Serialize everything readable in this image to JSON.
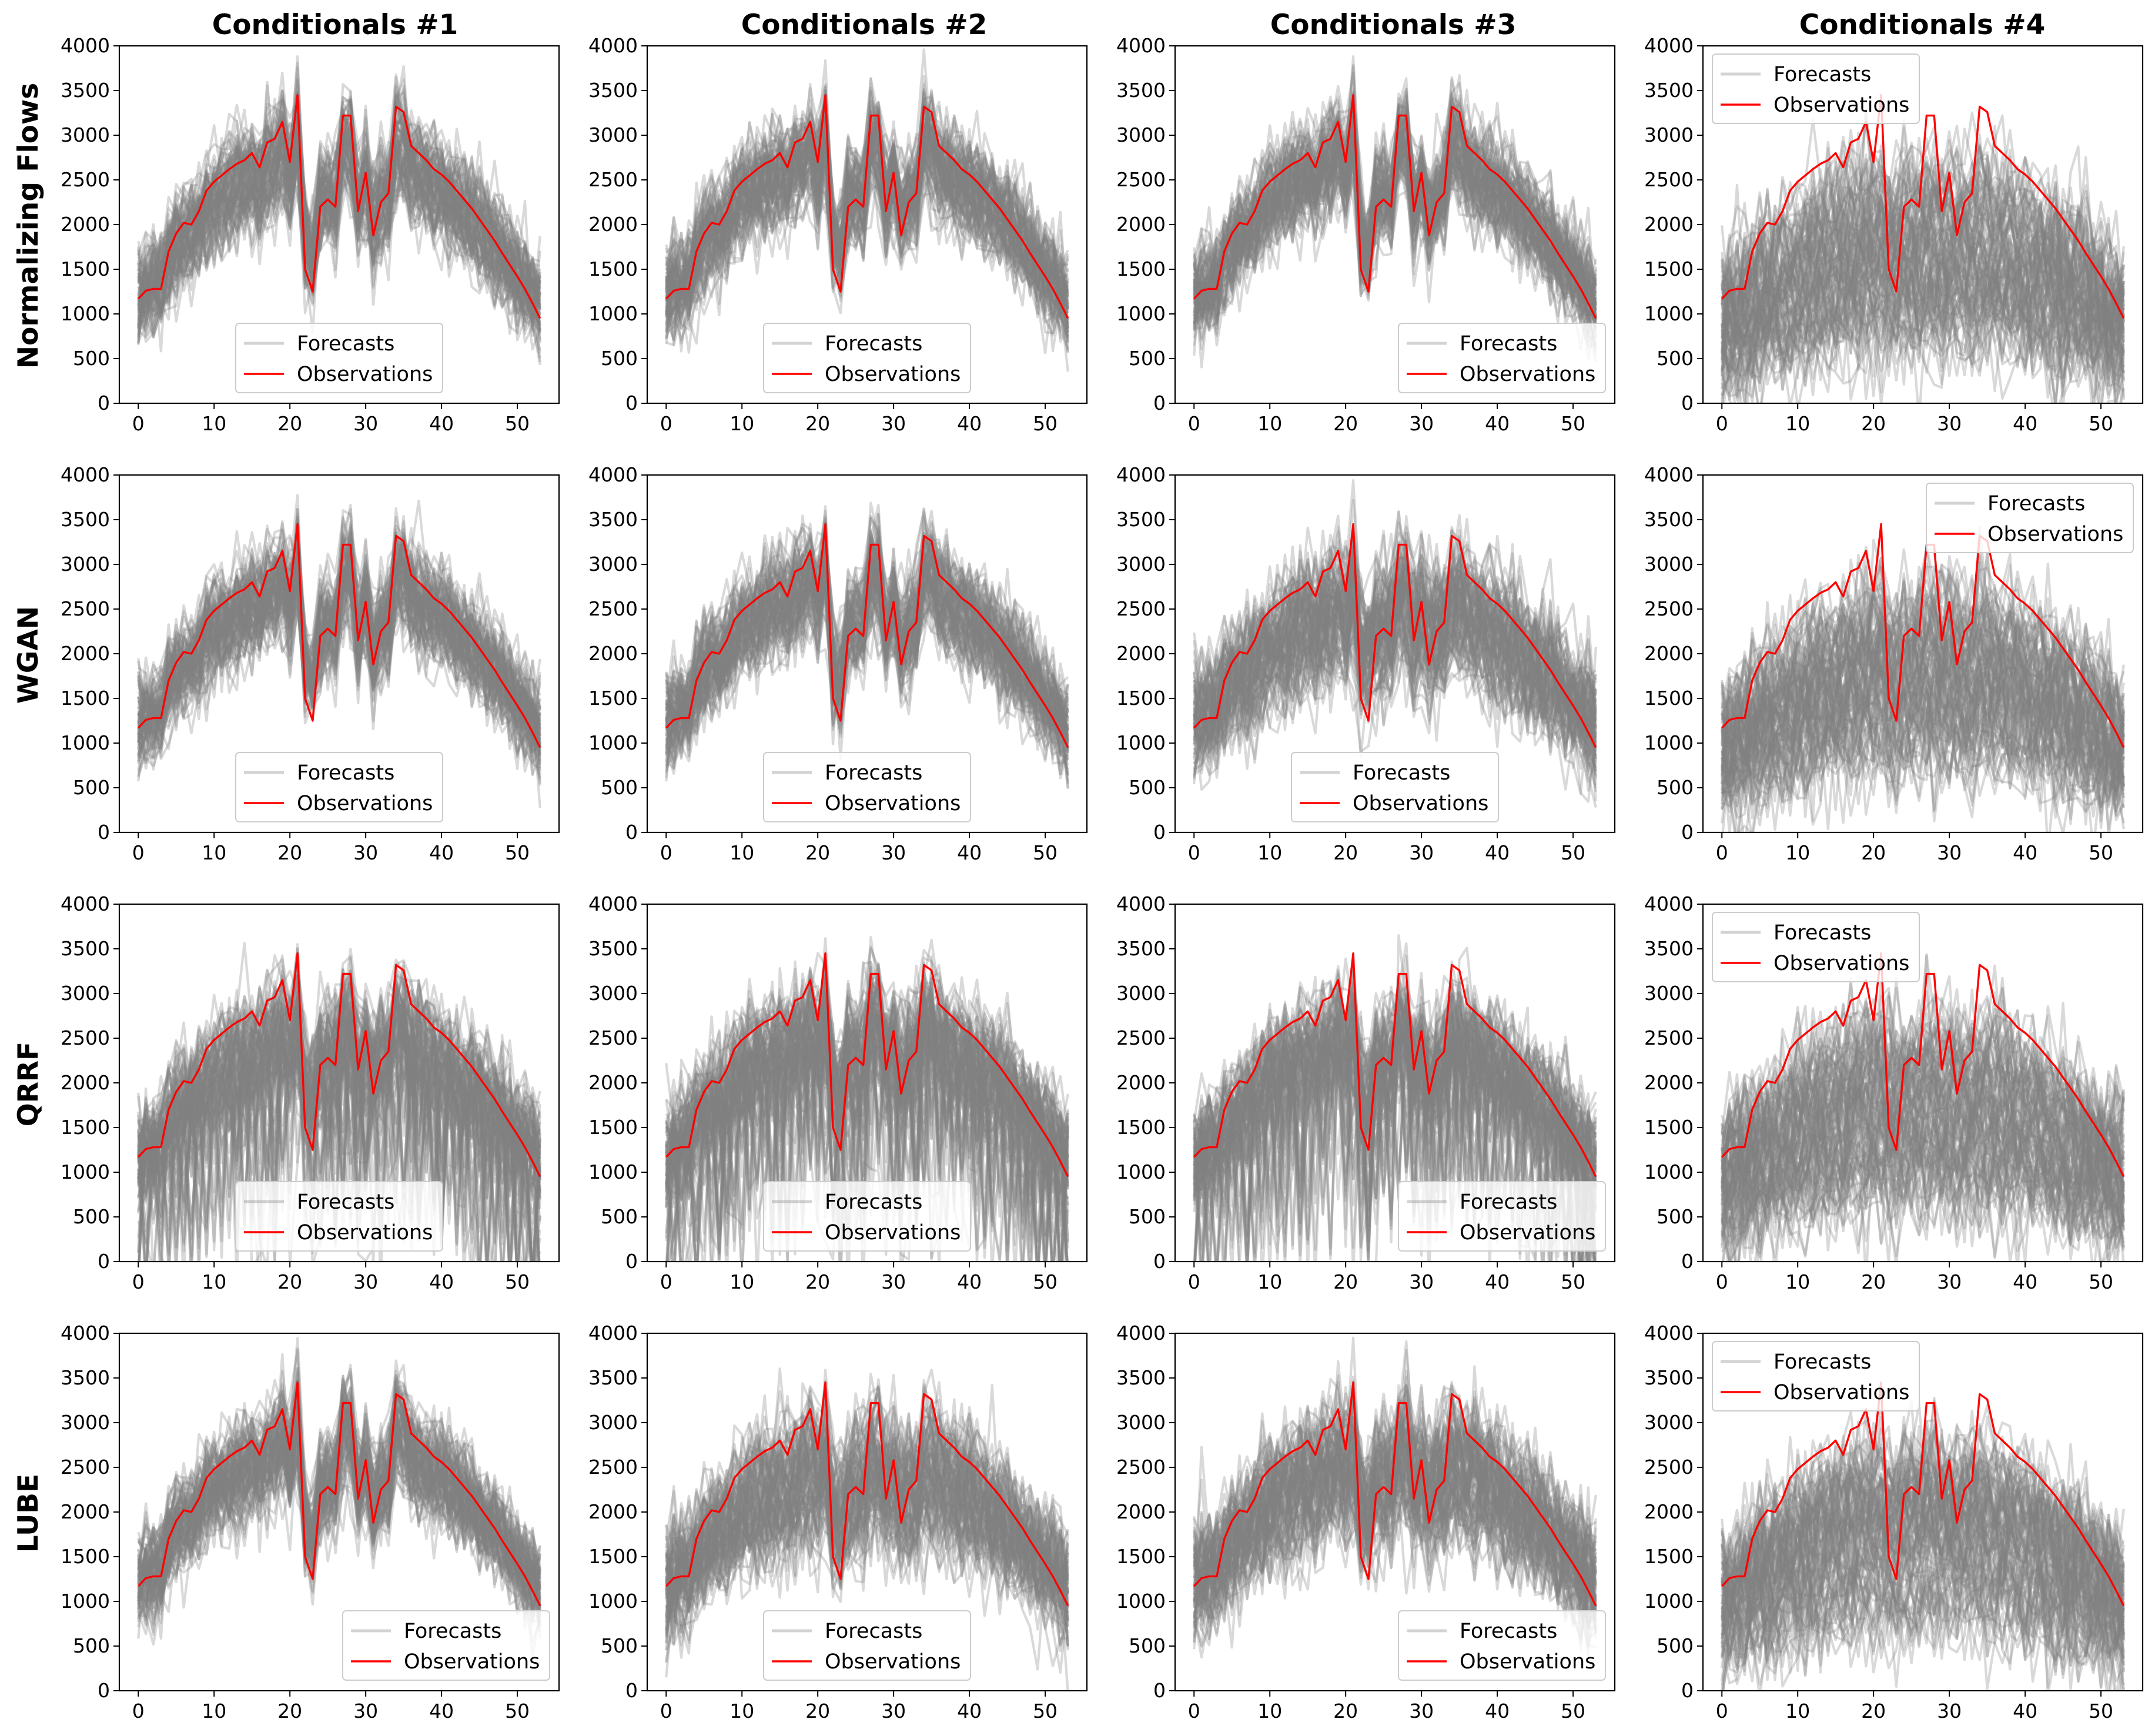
{
  "chart_data": {
    "type": "line",
    "layout": "grid 4 rows x 4 columns",
    "column_titles": [
      "Conditionals #1",
      "Conditionals #2",
      "Conditionals #3",
      "Conditionals #4"
    ],
    "row_titles": [
      "Normalizing Flows",
      "WGAN",
      "QRRF",
      "LUBE"
    ],
    "x": [
      0,
      1,
      2,
      3,
      4,
      5,
      6,
      7,
      8,
      9,
      10,
      11,
      12,
      13,
      14,
      15,
      16,
      17,
      18,
      19,
      20,
      21,
      22,
      23,
      24,
      25,
      26,
      27,
      28,
      29,
      30,
      31,
      32,
      33,
      34,
      35,
      36,
      37,
      38,
      39,
      40,
      41,
      42,
      43,
      44,
      45,
      46,
      47,
      48,
      49,
      50,
      51,
      52,
      53
    ],
    "xlim": [
      -2.5,
      55.5
    ],
    "ylim": [
      0,
      4000
    ],
    "x_ticks": [
      0,
      10,
      20,
      30,
      40,
      50
    ],
    "y_ticks": [
      0,
      500,
      1000,
      1500,
      2000,
      2500,
      3000,
      3500,
      4000
    ],
    "series_styles": {
      "Forecasts": {
        "color": "#808080",
        "opacity": 0.3,
        "count_per_panel": 100
      },
      "Observations": {
        "color": "#ff0000"
      }
    },
    "observations": [
      1170,
      1260,
      1280,
      1280,
      1700,
      1900,
      2020,
      2000,
      2150,
      2380,
      2480,
      2550,
      2620,
      2680,
      2720,
      2800,
      2640,
      2920,
      2960,
      3150,
      2700,
      3450,
      1500,
      1250,
      2200,
      2280,
      2200,
      3220,
      3220,
      2150,
      2580,
      1880,
      2250,
      2350,
      3320,
      3260,
      2880,
      2800,
      2720,
      2620,
      2560,
      2480,
      2380,
      2280,
      2180,
      2060,
      1940,
      1820,
      1680,
      1550,
      1420,
      1280,
      1120,
      950
    ],
    "legend_labels": [
      "Forecasts",
      "Observations"
    ],
    "panels": [
      {
        "row": 0,
        "col": 0,
        "legend": "lower center",
        "forecast_profile": "close"
      },
      {
        "row": 0,
        "col": 1,
        "legend": "lower center",
        "forecast_profile": "close"
      },
      {
        "row": 0,
        "col": 2,
        "legend": "lower right",
        "forecast_profile": "close"
      },
      {
        "row": 0,
        "col": 3,
        "legend": "upper left",
        "forecast_profile": "low-wide"
      },
      {
        "row": 1,
        "col": 0,
        "legend": "lower center",
        "forecast_profile": "close"
      },
      {
        "row": 1,
        "col": 1,
        "legend": "lower center",
        "forecast_profile": "close"
      },
      {
        "row": 1,
        "col": 2,
        "legend": "lower center",
        "forecast_profile": "medium"
      },
      {
        "row": 1,
        "col": 3,
        "legend": "upper right",
        "forecast_profile": "low-wide"
      },
      {
        "row": 2,
        "col": 0,
        "legend": "lower center",
        "forecast_profile": "spiky"
      },
      {
        "row": 2,
        "col": 1,
        "legend": "lower center",
        "forecast_profile": "spiky"
      },
      {
        "row": 2,
        "col": 2,
        "legend": "lower right",
        "forecast_profile": "spiky"
      },
      {
        "row": 2,
        "col": 3,
        "legend": "upper left",
        "forecast_profile": "low-wide"
      },
      {
        "row": 3,
        "col": 0,
        "legend": "lower right",
        "forecast_profile": "close"
      },
      {
        "row": 3,
        "col": 1,
        "legend": "lower center",
        "forecast_profile": "medium"
      },
      {
        "row": 3,
        "col": 2,
        "legend": "lower right",
        "forecast_profile": "medium"
      },
      {
        "row": 3,
        "col": 3,
        "legend": "upper left",
        "forecast_profile": "low-wide"
      }
    ]
  }
}
